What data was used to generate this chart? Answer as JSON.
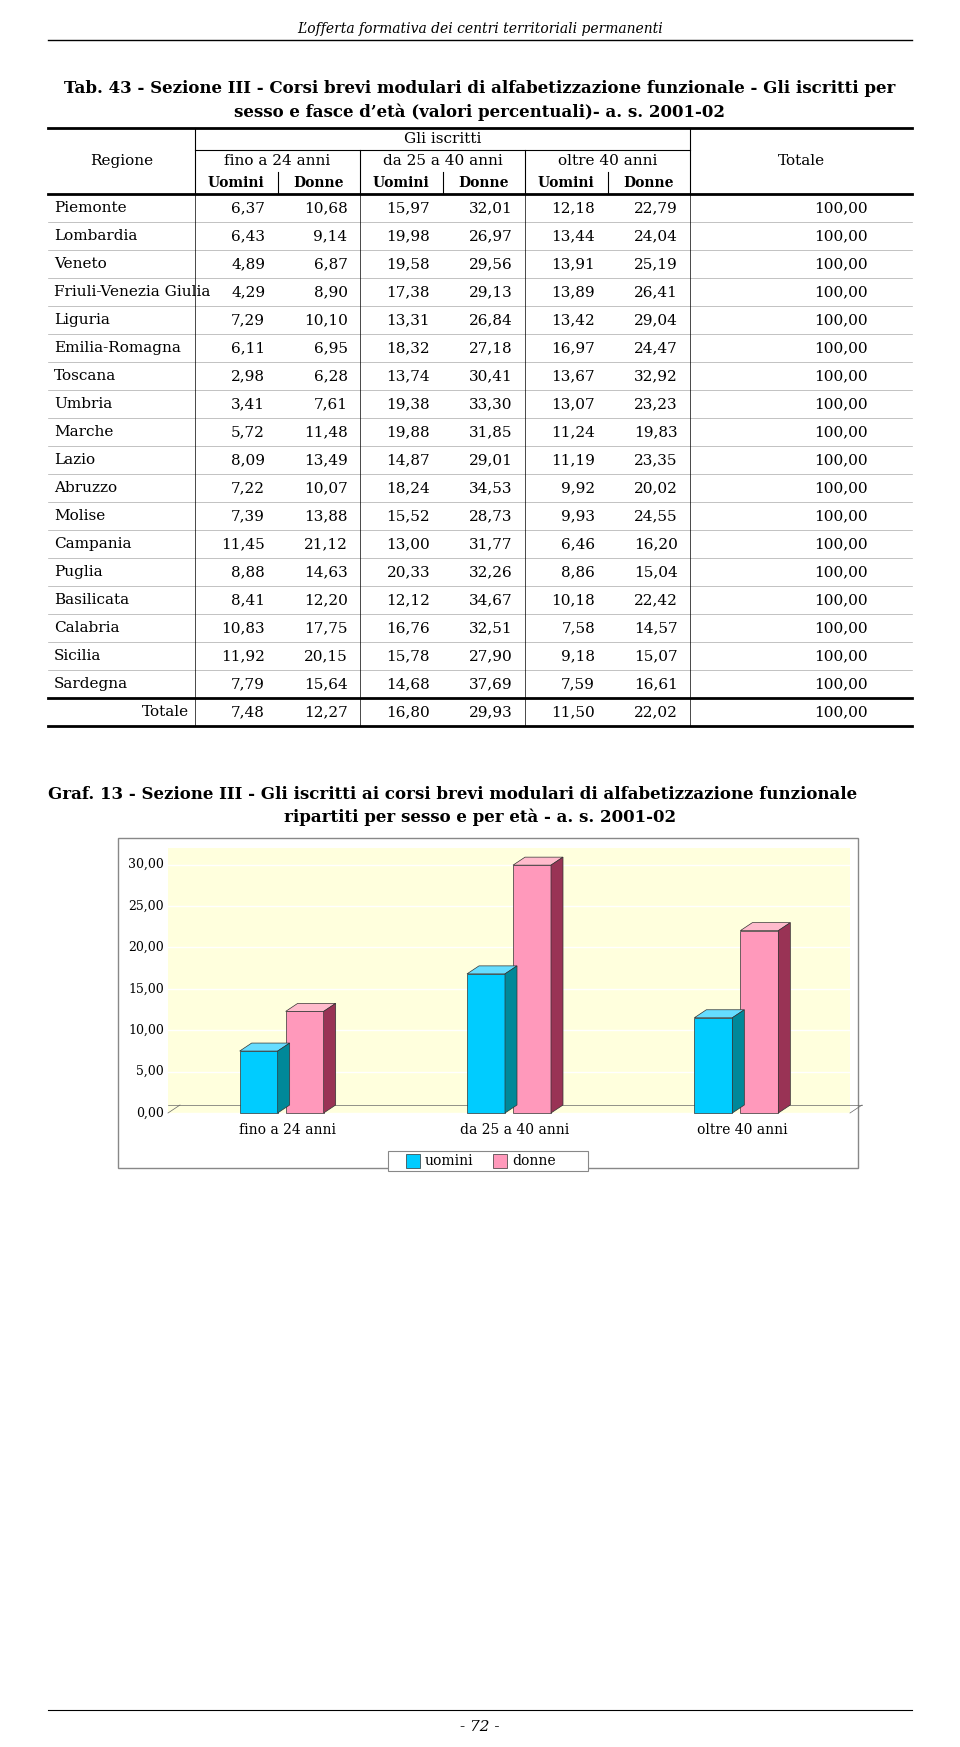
{
  "page_header": "L’offerta formativa dei centri territoriali permanenti",
  "table_title_line1": "Tab. 43 - Sezione III - Corsi brevi modulari di alfabetizzazione funzionale - Gli iscritti per",
  "table_title_line2": "sesso e fasce d’età (valori percentuali)- a. s. 2001-02",
  "col_header_main": "Gli iscritti",
  "col_header_groups": [
    "fino a 24 anni",
    "da 25 a 40 anni",
    "oltre 40 anni"
  ],
  "col_header_sub": [
    "Uomini",
    "Donne",
    "Uomini",
    "Donne",
    "Uomini",
    "Donne"
  ],
  "col_totale": "Totale",
  "col_regione": "Regione",
  "regions": [
    "Piemonte",
    "Lombardia",
    "Veneto",
    "Friuli-Venezia Giulia",
    "Liguria",
    "Emilia-Romagna",
    "Toscana",
    "Umbria",
    "Marche",
    "Lazio",
    "Abruzzo",
    "Molise",
    "Campania",
    "Puglia",
    "Basilicata",
    "Calabria",
    "Sicilia",
    "Sardegna"
  ],
  "data": [
    [
      6.37,
      10.68,
      15.97,
      32.01,
      12.18,
      22.79,
      100.0
    ],
    [
      6.43,
      9.14,
      19.98,
      26.97,
      13.44,
      24.04,
      100.0
    ],
    [
      4.89,
      6.87,
      19.58,
      29.56,
      13.91,
      25.19,
      100.0
    ],
    [
      4.29,
      8.9,
      17.38,
      29.13,
      13.89,
      26.41,
      100.0
    ],
    [
      7.29,
      10.1,
      13.31,
      26.84,
      13.42,
      29.04,
      100.0
    ],
    [
      6.11,
      6.95,
      18.32,
      27.18,
      16.97,
      24.47,
      100.0
    ],
    [
      2.98,
      6.28,
      13.74,
      30.41,
      13.67,
      32.92,
      100.0
    ],
    [
      3.41,
      7.61,
      19.38,
      33.3,
      13.07,
      23.23,
      100.0
    ],
    [
      5.72,
      11.48,
      19.88,
      31.85,
      11.24,
      19.83,
      100.0
    ],
    [
      8.09,
      13.49,
      14.87,
      29.01,
      11.19,
      23.35,
      100.0
    ],
    [
      7.22,
      10.07,
      18.24,
      34.53,
      9.92,
      20.02,
      100.0
    ],
    [
      7.39,
      13.88,
      15.52,
      28.73,
      9.93,
      24.55,
      100.0
    ],
    [
      11.45,
      21.12,
      13.0,
      31.77,
      6.46,
      16.2,
      100.0
    ],
    [
      8.88,
      14.63,
      20.33,
      32.26,
      8.86,
      15.04,
      100.0
    ],
    [
      8.41,
      12.2,
      12.12,
      34.67,
      10.18,
      22.42,
      100.0
    ],
    [
      10.83,
      17.75,
      16.76,
      32.51,
      7.58,
      14.57,
      100.0
    ],
    [
      11.92,
      20.15,
      15.78,
      27.9,
      9.18,
      15.07,
      100.0
    ],
    [
      7.79,
      15.64,
      14.68,
      37.69,
      7.59,
      16.61,
      100.0
    ]
  ],
  "totale_row": [
    7.48,
    12.27,
    16.8,
    29.93,
    11.5,
    22.02,
    100.0
  ],
  "totale_label": "Totale",
  "graph_title_line1": "Graf. 13 - Sezione III - Gli iscritti ai corsi brevi modulari di alfabetizzazione funzionale",
  "graph_title_line2": "ripartiti per sesso e per età - a. s. 2001-02",
  "bar_categories": [
    "fino a 24 anni",
    "da 25 a 40 anni",
    "oltre 40 anni"
  ],
  "bar_uomini": [
    7.48,
    16.8,
    11.5
  ],
  "bar_donne": [
    12.27,
    29.93,
    22.02
  ],
  "bar_color_uomini": "#00CCFF",
  "bar_color_uomini_side": "#008899",
  "bar_color_uomini_top": "#66DDFF",
  "bar_color_donne": "#FF99BB",
  "bar_color_donne_side": "#993355",
  "bar_color_donne_top": "#FFBBCC",
  "legend_uomini": "uomini",
  "legend_donne": "donne",
  "ymax": 32.0,
  "yticks": [
    0.0,
    5.0,
    10.0,
    15.0,
    20.0,
    25.0,
    30.0
  ],
  "page_number": "- 72 -",
  "bg_color_chart": "#FFFFDD",
  "chart_border_color": "#AAAAAA"
}
